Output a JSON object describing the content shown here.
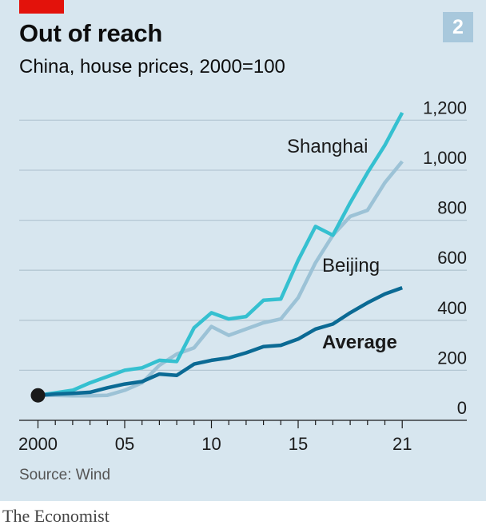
{
  "badge": "2",
  "source": "Source: Wind",
  "brand": "The Economist",
  "colors": {
    "background": "#d7e6ef",
    "accent_red": "#e3120b",
    "shanghai": "#35c0d0",
    "beijing": "#9cc2d6",
    "average": "#0b6a94"
  },
  "chart_data": {
    "type": "line",
    "title": "Out of reach",
    "subtitle": "China, house prices, 2000=100",
    "x_tick_labels": [
      {
        "x": 2000,
        "label": "2000"
      },
      {
        "x": 2005,
        "label": "05"
      },
      {
        "x": 2010,
        "label": "10"
      },
      {
        "x": 2015,
        "label": "15"
      },
      {
        "x": 2021,
        "label": "21"
      }
    ],
    "y_tick_labels": [
      {
        "y": 0,
        "label": "0"
      },
      {
        "y": 200,
        "label": "200"
      },
      {
        "y": 400,
        "label": "400"
      },
      {
        "y": 600,
        "label": "600"
      },
      {
        "y": 800,
        "label": "800"
      },
      {
        "y": 1000,
        "label": "1,000"
      },
      {
        "y": 1200,
        "label": "1,200"
      }
    ],
    "xlim": [
      1999,
      2024
    ],
    "ylim": [
      0,
      1200
    ],
    "y_axis_side": "right",
    "grid": true,
    "x": [
      2000,
      2001,
      2002,
      2003,
      2004,
      2005,
      2006,
      2007,
      2008,
      2009,
      2010,
      2011,
      2012,
      2013,
      2014,
      2015,
      2016,
      2017,
      2018,
      2019,
      2020,
      2021
    ],
    "series": [
      {
        "name": "Shanghai",
        "color": "#35c0d0",
        "values": [
          100,
          110,
          120,
          150,
          175,
          200,
          210,
          240,
          235,
          370,
          430,
          405,
          415,
          480,
          485,
          640,
          775,
          740,
          870,
          990,
          1100,
          1230
        ]
      },
      {
        "name": "Beijing",
        "color": "#9cc2d6",
        "values": [
          100,
          100,
          98,
          98,
          100,
          120,
          150,
          220,
          265,
          290,
          375,
          340,
          365,
          390,
          405,
          490,
          630,
          740,
          815,
          840,
          950,
          1035
        ]
      },
      {
        "name": "Average",
        "color": "#0b6a94",
        "values": [
          100,
          105,
          108,
          112,
          130,
          145,
          155,
          185,
          180,
          225,
          240,
          250,
          270,
          295,
          300,
          325,
          365,
          385,
          430,
          470,
          505,
          530
        ]
      }
    ],
    "start_marker": {
      "x": 2000,
      "y": 100
    },
    "annotations": [
      {
        "text": "Shanghai",
        "series": "Shanghai"
      },
      {
        "text": "Beijing",
        "series": "Beijing"
      },
      {
        "text": "Average",
        "series": "Average",
        "bold": true
      }
    ]
  }
}
